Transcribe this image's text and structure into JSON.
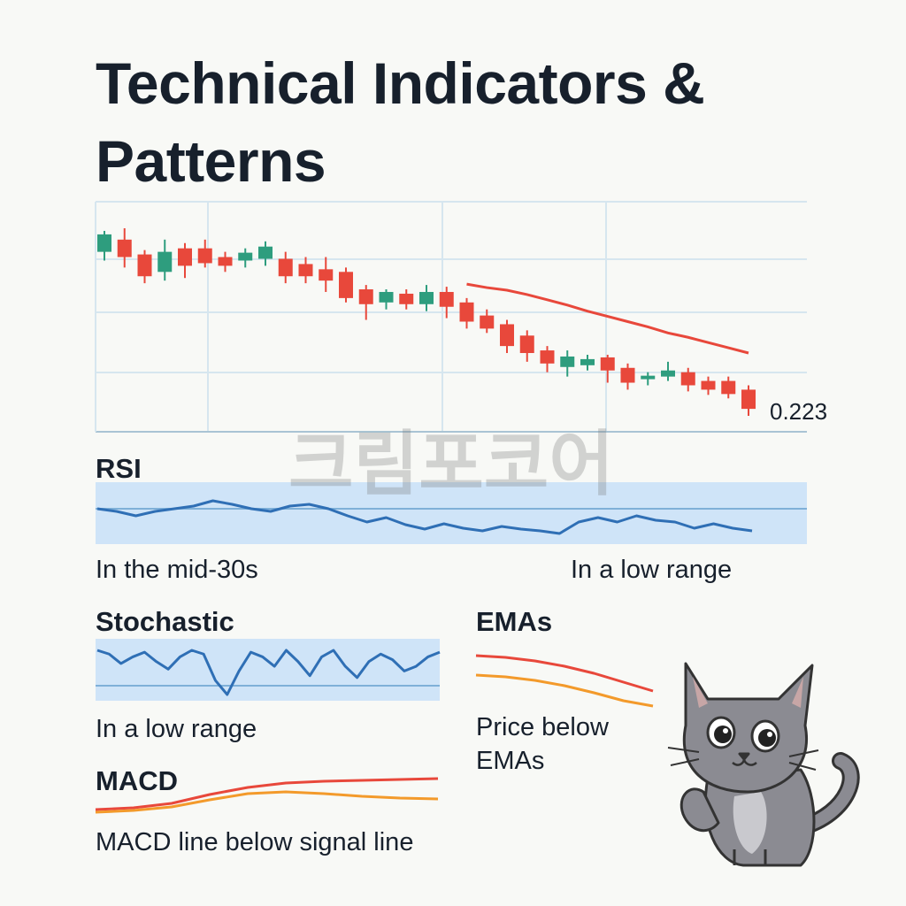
{
  "title": "Technical Indicators & Patterns",
  "watermark": "크림포코어",
  "chart_data": [
    {
      "type": "candlestick",
      "open": [
        2.03,
        2.17,
        2.0,
        1.8,
        2.07,
        2.07,
        1.97,
        1.93,
        1.95,
        1.95,
        1.89,
        1.83,
        1.8,
        1.6,
        1.45,
        1.55,
        1.43,
        1.57,
        1.45,
        1.3,
        1.2,
        1.07,
        0.9,
        0.71,
        0.73,
        0.82,
        0.7,
        0.57,
        0.6,
        0.65,
        0.55,
        0.55,
        0.45
      ],
      "high": [
        2.27,
        2.3,
        2.05,
        2.17,
        2.13,
        2.17,
        2.03,
        2.07,
        2.15,
        2.03,
        1.97,
        1.97,
        1.85,
        1.65,
        1.6,
        1.6,
        1.65,
        1.63,
        1.5,
        1.37,
        1.25,
        1.13,
        0.95,
        0.9,
        0.85,
        0.85,
        0.75,
        0.65,
        0.77,
        0.7,
        0.6,
        0.6,
        0.5
      ],
      "low": [
        1.93,
        1.85,
        1.67,
        1.7,
        1.73,
        1.85,
        1.8,
        1.85,
        1.87,
        1.67,
        1.67,
        1.57,
        1.45,
        1.25,
        1.37,
        1.37,
        1.35,
        1.27,
        1.15,
        1.1,
        0.87,
        0.77,
        0.65,
        0.6,
        0.67,
        0.53,
        0.45,
        0.5,
        0.55,
        0.43,
        0.39,
        0.35,
        0.15
      ],
      "close": [
        2.23,
        1.97,
        1.75,
        2.03,
        1.87,
        1.9,
        1.87,
        2.02,
        2.09,
        1.75,
        1.75,
        1.7,
        1.5,
        1.43,
        1.57,
        1.43,
        1.57,
        1.4,
        1.23,
        1.15,
        0.95,
        0.87,
        0.75,
        0.83,
        0.8,
        0.67,
        0.53,
        0.61,
        0.67,
        0.5,
        0.45,
        0.4,
        0.23
      ],
      "up_color": "#2e9d7e",
      "down_color": "#e8483b",
      "grid": true,
      "overlay": {
        "color": "#e8483b",
        "values": [
          null,
          null,
          null,
          null,
          null,
          null,
          null,
          null,
          null,
          null,
          null,
          null,
          null,
          null,
          null,
          null,
          null,
          null,
          1.66,
          1.62,
          1.59,
          1.54,
          1.48,
          1.42,
          1.35,
          1.29,
          1.23,
          1.17,
          1.1,
          1.05,
          0.99,
          0.93,
          0.87
        ]
      },
      "annotation": "0.223"
    },
    {
      "type": "line",
      "title": "RSI",
      "band_color": "#cfe4f8",
      "color": "#2f6fb5",
      "values": [
        45,
        42,
        37,
        42,
        45,
        48,
        54,
        50,
        45,
        42,
        48,
        50,
        45,
        37,
        30,
        35,
        27,
        22,
        28,
        23,
        20,
        25,
        22,
        20,
        17,
        30,
        35,
        30,
        37,
        32,
        30,
        23,
        28,
        23,
        20
      ],
      "notes": [
        "In the mid-30s",
        "In a low range"
      ]
    },
    {
      "type": "line",
      "title": "Stochastic",
      "band_color": "#cfe4f8",
      "color": "#2f6fb5",
      "values": [
        62,
        58,
        48,
        55,
        60,
        50,
        42,
        55,
        62,
        58,
        30,
        15,
        40,
        60,
        55,
        45,
        62,
        50,
        35,
        55,
        62,
        45,
        33,
        50,
        58,
        52,
        40,
        45,
        55,
        60
      ],
      "notes": [
        "In a low range"
      ]
    },
    {
      "type": "line",
      "title": "EMAs",
      "series": [
        {
          "color": "#e8483b",
          "values": [
            79,
            77,
            73,
            67,
            59,
            49,
            39
          ]
        },
        {
          "color": "#f39a2b",
          "values": [
            57,
            55,
            51,
            45,
            37,
            28,
            22
          ]
        }
      ],
      "notes": [
        "Price below EMAs"
      ]
    },
    {
      "type": "line",
      "title": "MACD",
      "series": [
        {
          "color": "#e8483b",
          "values": [
            15,
            17,
            22,
            32,
            40,
            45,
            47,
            48,
            49,
            50
          ]
        },
        {
          "color": "#f39a2b",
          "values": [
            12,
            14,
            18,
            26,
            33,
            35,
            33,
            30,
            28,
            27
          ]
        }
      ],
      "notes": [
        "MACD line below signal line"
      ]
    }
  ]
}
